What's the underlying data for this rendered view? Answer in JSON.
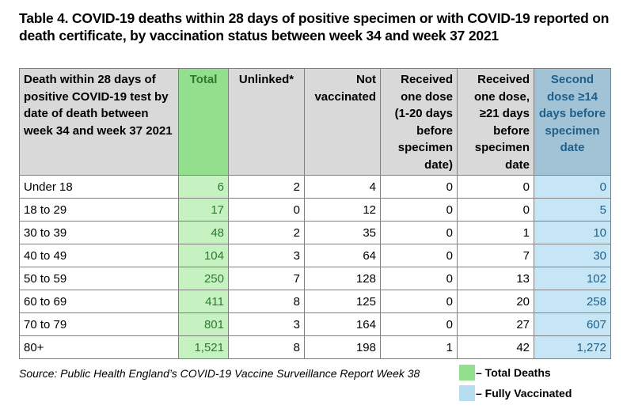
{
  "title": "Table 4. COVID-19 deaths within 28 days of positive specimen or with COVID-19 reported on death certificate, by vaccination status between week 34 and week 37 2021",
  "headers": {
    "age": "Death within 28 days of positive COVID-19 test by date of death between week 34 and week 37 2021",
    "total": "Total",
    "unlinked": "Unlinked*",
    "not_vaccinated": "Not vaccinated",
    "one_dose_early": "Received one dose (1-20 days before specimen date)",
    "one_dose_late": "Received one dose, ≥21 days before specimen date",
    "second_dose": "Second dose ≥14 days before specimen date"
  },
  "rows": [
    {
      "age": "Under 18",
      "total": "6",
      "unlinked": "2",
      "not_vaccinated": "4",
      "one_dose_early": "0",
      "one_dose_late": "0",
      "second_dose": "0"
    },
    {
      "age": "18 to 29",
      "total": "17",
      "unlinked": "0",
      "not_vaccinated": "12",
      "one_dose_early": "0",
      "one_dose_late": "0",
      "second_dose": "5"
    },
    {
      "age": "30 to 39",
      "total": "48",
      "unlinked": "2",
      "not_vaccinated": "35",
      "one_dose_early": "0",
      "one_dose_late": "1",
      "second_dose": "10"
    },
    {
      "age": "40 to 49",
      "total": "104",
      "unlinked": "3",
      "not_vaccinated": "64",
      "one_dose_early": "0",
      "one_dose_late": "7",
      "second_dose": "30"
    },
    {
      "age": "50 to 59",
      "total": "250",
      "unlinked": "7",
      "not_vaccinated": "128",
      "one_dose_early": "0",
      "one_dose_late": "13",
      "second_dose": "102"
    },
    {
      "age": "60 to 69",
      "total": "411",
      "unlinked": "8",
      "not_vaccinated": "125",
      "one_dose_early": "0",
      "one_dose_late": "20",
      "second_dose": "258"
    },
    {
      "age": "70 to 79",
      "total": "801",
      "unlinked": "3",
      "not_vaccinated": "164",
      "one_dose_early": "0",
      "one_dose_late": "27",
      "second_dose": "607"
    },
    {
      "age": "80+",
      "total": "1,521",
      "unlinked": "8",
      "not_vaccinated": "198",
      "one_dose_early": "1",
      "one_dose_late": "42",
      "second_dose": "1,272"
    }
  ],
  "source": "Source: Public Health England’s COVID-19 Vaccine Surveillance Report Week 38",
  "legend": {
    "total_deaths": "– Total Deaths",
    "fully_vaccinated": "– Fully Vaccinated"
  },
  "colors": {
    "total_header": "#92e08e",
    "total_cell": "#c6f2c2",
    "second_header": "#a2c3d6",
    "second_cell": "#c6e5f5",
    "header_grey": "#d9d9d9"
  }
}
